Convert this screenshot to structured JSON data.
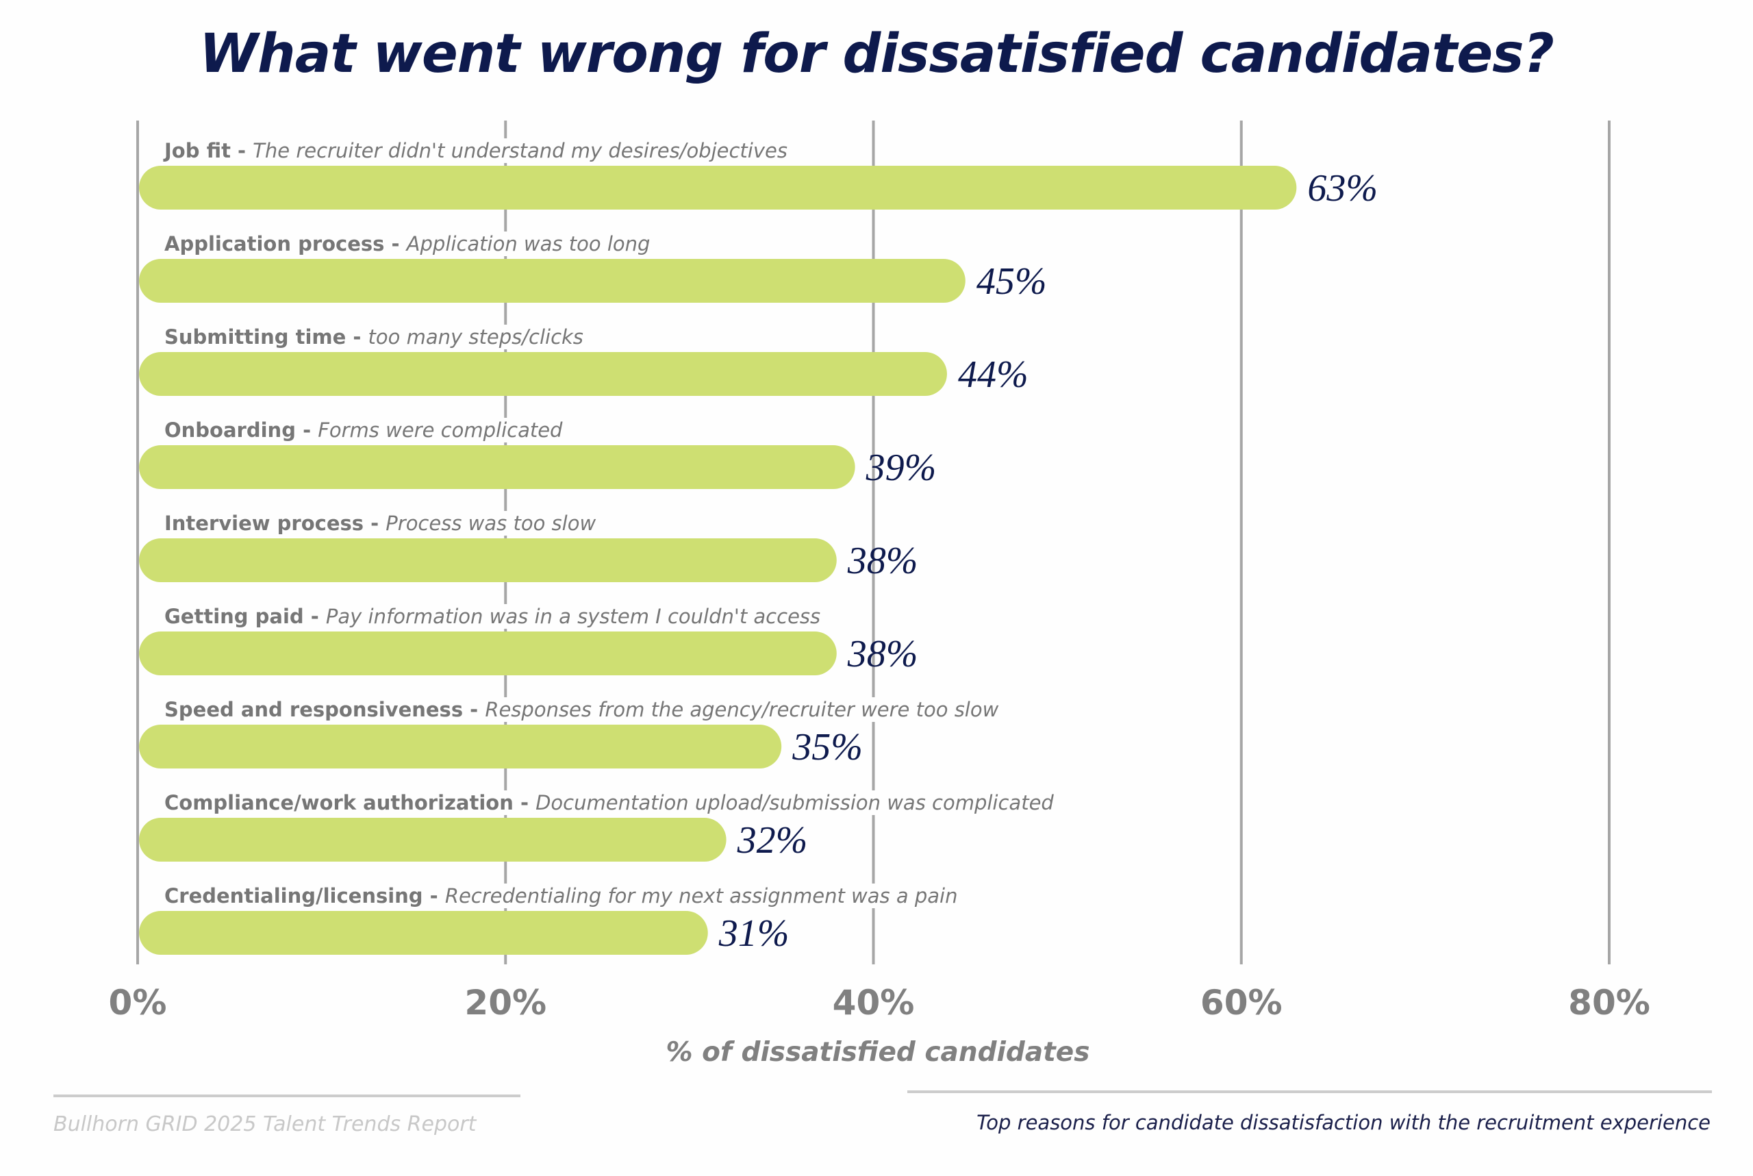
{
  "chart_data": {
    "type": "bar",
    "orientation": "horizontal",
    "title": "What went wrong for dissatisfied candidates?",
    "xlabel": "% of dissatisfied candidates",
    "ylabel": "",
    "xlim": [
      0,
      80
    ],
    "x_ticks": [
      0,
      20,
      40,
      60,
      80
    ],
    "x_tick_labels": [
      "0%",
      "20%",
      "40%",
      "60%",
      "80%"
    ],
    "grid": true,
    "legend": "none",
    "categories": [
      {
        "name": "Job fit",
        "separator": " - ",
        "description": "The recruiter didn't understand my desires/objectives"
      },
      {
        "name": "Application process",
        "separator": " - ",
        "description": "Application was too long"
      },
      {
        "name": "Submitting time",
        "separator": " - ",
        "description": "too many steps/clicks"
      },
      {
        "name": "Onboarding",
        "separator": " - ",
        "description": "Forms were complicated"
      },
      {
        "name": "Interview process",
        "separator": " - ",
        "description": "Process was too slow"
      },
      {
        "name": "Getting paid",
        "separator": " - ",
        "description": "Pay information was in a system I couldn't access"
      },
      {
        "name": "Speed and responsiveness",
        "separator": " - ",
        "description": "Responses from the agency/recruiter were too slow"
      },
      {
        "name": "Compliance/work authorization",
        "separator": " - ",
        "description": "Documentation upload/submission was complicated"
      },
      {
        "name": "Credentialing/licensing",
        "separator": " - ",
        "description": "Recredentialing for my next assignment was a pain"
      }
    ],
    "values": [
      63,
      45,
      44,
      39,
      38,
      38,
      35,
      32,
      31
    ],
    "value_labels": [
      "63%",
      "45%",
      "44%",
      "39%",
      "38%",
      "38%",
      "35%",
      "32%",
      "31%"
    ],
    "colors": {
      "bar": "#cedf72",
      "title": "#0e1a4d",
      "value_label": "#0e1a4d",
      "category_label": "#767676",
      "gridline": "#a6a6a6",
      "axis_text": "#808080"
    }
  },
  "footer": {
    "source": "Bullhorn GRID 2025 Talent Trends Report",
    "caption": "Top reasons for candidate dissatisfaction with the recruitment experience"
  }
}
